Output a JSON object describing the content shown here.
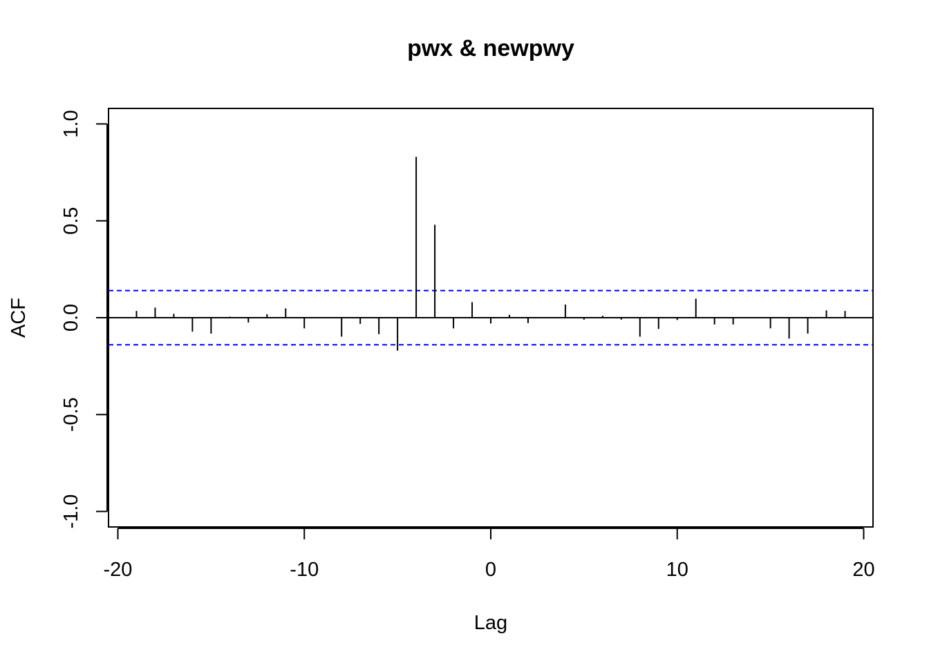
{
  "chart_data": {
    "type": "bar",
    "title": "pwx & newpwy",
    "xlabel": "Lag",
    "ylabel": "ACF",
    "xlim": [
      -20.5,
      20.5
    ],
    "ylim": [
      -1.08,
      1.08
    ],
    "x_ticks": [
      -20,
      -10,
      0,
      10,
      20
    ],
    "x_tick_labels": [
      "-20",
      "-10",
      "0",
      "10",
      "20"
    ],
    "y_ticks": [
      -1.0,
      -0.5,
      0.0,
      0.5,
      1.0
    ],
    "y_tick_labels": [
      "-1.0",
      "-0.5",
      "0.0",
      "0.5",
      "1.0"
    ],
    "x": [
      -19,
      -18,
      -17,
      -16,
      -15,
      -14,
      -13,
      -12,
      -11,
      -10,
      -9,
      -8,
      -7,
      -6,
      -5,
      -4,
      -3,
      -2,
      -1,
      0,
      1,
      2,
      3,
      4,
      5,
      6,
      7,
      8,
      9,
      10,
      11,
      12,
      13,
      14,
      15,
      16,
      17,
      18,
      19
    ],
    "values": [
      0.035,
      0.052,
      0.02,
      -0.072,
      -0.082,
      0.005,
      -0.025,
      0.018,
      0.048,
      -0.055,
      0.0,
      -0.098,
      -0.032,
      -0.085,
      -0.17,
      0.83,
      0.48,
      -0.055,
      0.08,
      -0.03,
      0.015,
      -0.028,
      0.002,
      0.068,
      -0.01,
      0.01,
      -0.01,
      -0.098,
      -0.058,
      -0.012,
      0.098,
      -0.035,
      -0.035,
      0.003,
      -0.055,
      -0.108,
      -0.082,
      0.038,
      0.035
    ],
    "confidence_bounds": [
      0.14,
      -0.14
    ],
    "confidence_color": "#0000ff",
    "bar_color": "#000000",
    "zero_line": true,
    "grid": false,
    "legend": "none"
  }
}
